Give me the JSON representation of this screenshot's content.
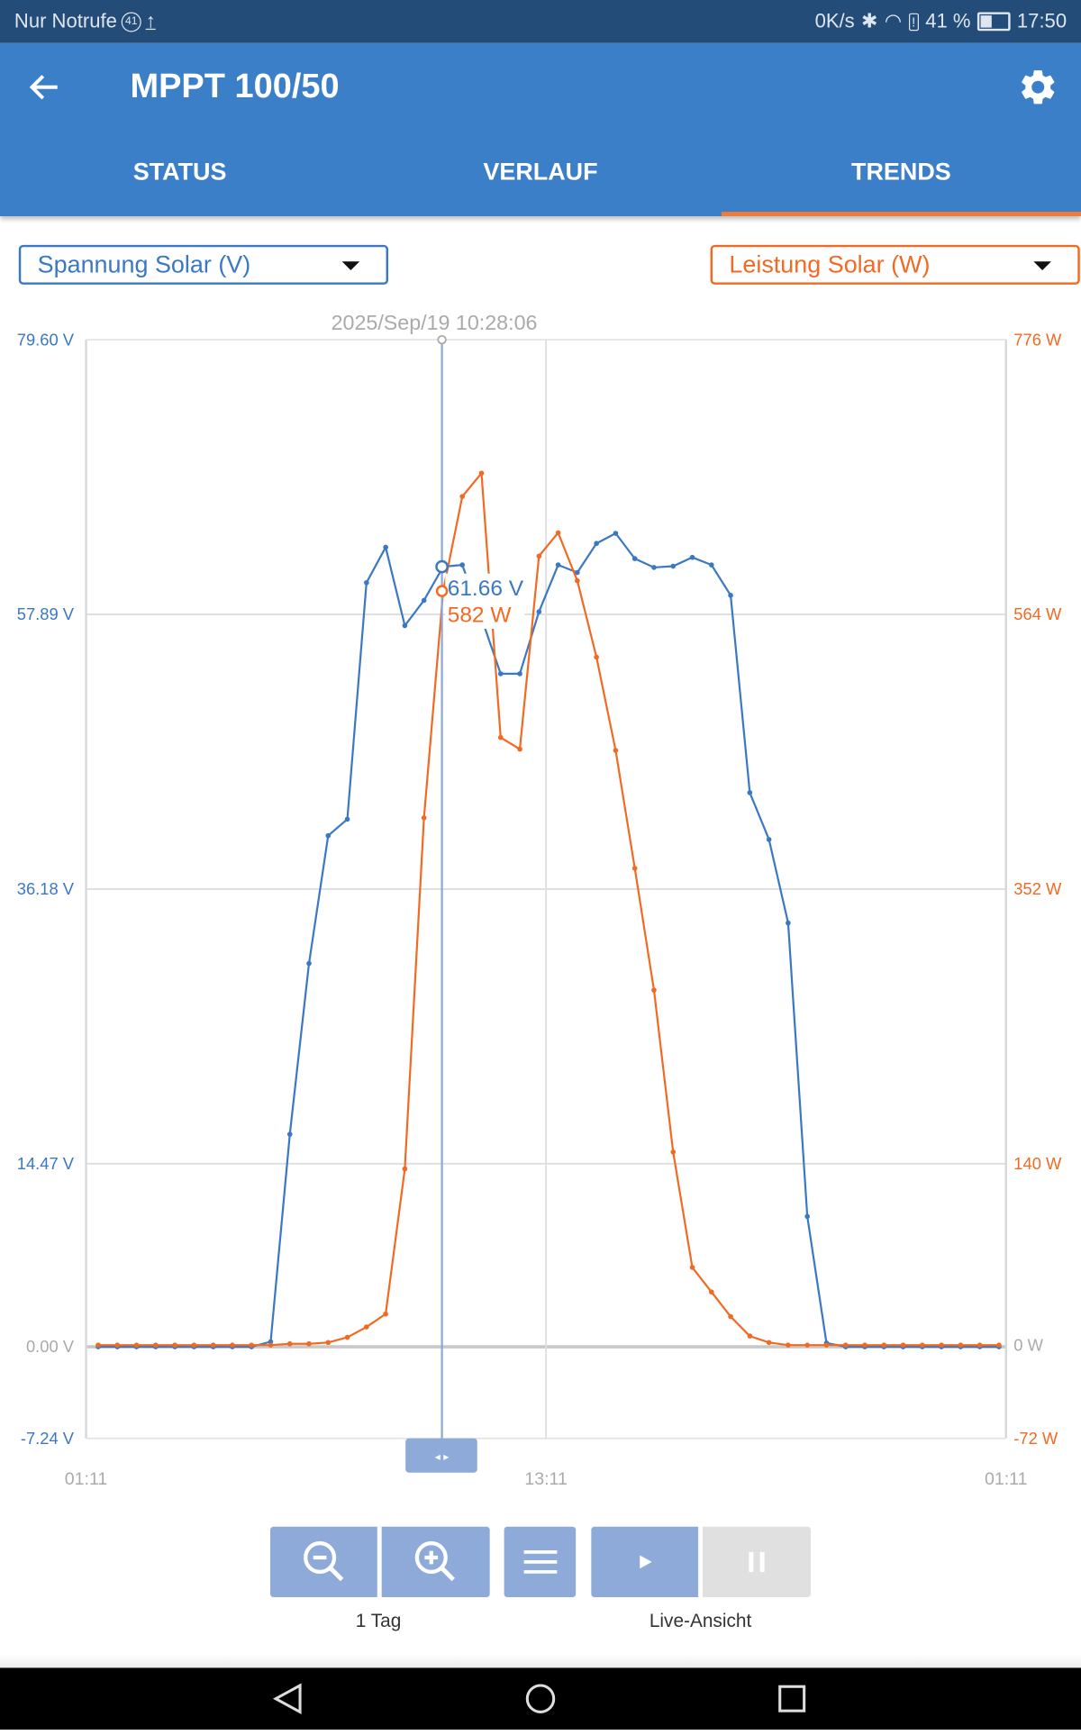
{
  "status_bar": {
    "carrier": "Nur Notrufe",
    "notification_count": "41",
    "net_speed": "0K/s",
    "battery": "41 %",
    "time": "17:50"
  },
  "app_bar": {
    "title": "MPPT 100/50",
    "back_icon": "arrow-left-icon",
    "settings_icon": "gear-icon"
  },
  "tabs": [
    {
      "label": "STATUS",
      "active": false
    },
    {
      "label": "VERLAUF",
      "active": false
    },
    {
      "label": "TRENDS",
      "active": true
    }
  ],
  "colors": {
    "primary": "#3a7fc7",
    "voltage": "#3a78c4",
    "power": "#f26a22",
    "tab_indicator": "#f07a3a",
    "button": "#8eaad9"
  },
  "selectors": {
    "left": "Spannung Solar (V)",
    "right": "Leistung Solar (W)"
  },
  "chart_data": {
    "type": "line",
    "cursor": {
      "label": "2025/Sep/19 10:28:06",
      "time": "10:28:06",
      "voltage_label": "61.66 V",
      "power_label": "582 W"
    },
    "x_ticks": [
      "01:11",
      "13:11",
      "01:11"
    ],
    "y_left": {
      "unit": "V",
      "ticks": [
        "79.60 V",
        "57.89 V",
        "36.18 V",
        "14.47 V",
        "0.00 V",
        "-7.24 V"
      ],
      "tick_values": [
        79.6,
        57.89,
        36.18,
        14.47,
        0,
        -7.24
      ],
      "range": [
        -7.24,
        79.6
      ]
    },
    "y_right": {
      "unit": "W",
      "ticks": [
        "776 W",
        "564 W",
        "352 W",
        "140 W",
        "0 W",
        "-72 W"
      ],
      "tick_values": [
        776,
        564,
        352,
        140,
        0,
        -72
      ],
      "range": [
        -72,
        776
      ]
    },
    "grid": true,
    "x": [
      "01:30",
      "02:00",
      "02:30",
      "03:00",
      "03:30",
      "04:00",
      "04:30",
      "05:00",
      "05:30",
      "06:00",
      "06:30",
      "07:00",
      "07:30",
      "08:00",
      "08:30",
      "09:00",
      "09:30",
      "10:00",
      "10:30",
      "11:00",
      "11:30",
      "12:00",
      "12:30",
      "13:00",
      "13:30",
      "14:00",
      "14:30",
      "15:00",
      "15:30",
      "16:00",
      "16:30",
      "17:00",
      "17:30",
      "18:00",
      "18:30",
      "19:00",
      "19:30",
      "20:00",
      "20:30",
      "21:00",
      "21:30",
      "22:00",
      "22:30",
      "23:00",
      "23:30",
      "00:00",
      "00:30",
      "01:00"
    ],
    "series": [
      {
        "name": "Spannung Solar (V)",
        "axis": "left",
        "values": [
          0,
          0,
          0,
          0,
          0,
          0,
          0,
          0,
          0,
          0.4,
          16.8,
          30.3,
          40.4,
          41.7,
          60.4,
          63.2,
          57.0,
          59.0,
          61.66,
          61.8,
          57.6,
          53.2,
          53.2,
          58.1,
          61.8,
          61.2,
          63.5,
          64.3,
          62.3,
          61.6,
          61.7,
          62.4,
          61.8,
          59.4,
          43.8,
          40.1,
          33.5,
          10.3,
          0.3,
          0,
          0,
          0,
          0,
          0,
          0,
          0,
          0,
          0
        ]
      },
      {
        "name": "Leistung Solar (W)",
        "axis": "right",
        "values": [
          0,
          0,
          0,
          0,
          0,
          0,
          0,
          0,
          0,
          0,
          1,
          1,
          2,
          6,
          14,
          24,
          136,
          407,
          582,
          655,
          673,
          469,
          460,
          609,
          627,
          590,
          531,
          459,
          368,
          274,
          149,
          60,
          41,
          22,
          7,
          2,
          0,
          0,
          0,
          0,
          0,
          0,
          0,
          0,
          0,
          0,
          0,
          0
        ]
      }
    ]
  },
  "controls": {
    "zoom_out_icon": "zoom-out-icon",
    "zoom_in_icon": "zoom-in-icon",
    "menu_icon": "menu-icon",
    "play_icon": "play-icon",
    "pause_icon": "pause-icon",
    "zoom_label": "1 Tag",
    "live_label": "Live-Ansicht"
  }
}
